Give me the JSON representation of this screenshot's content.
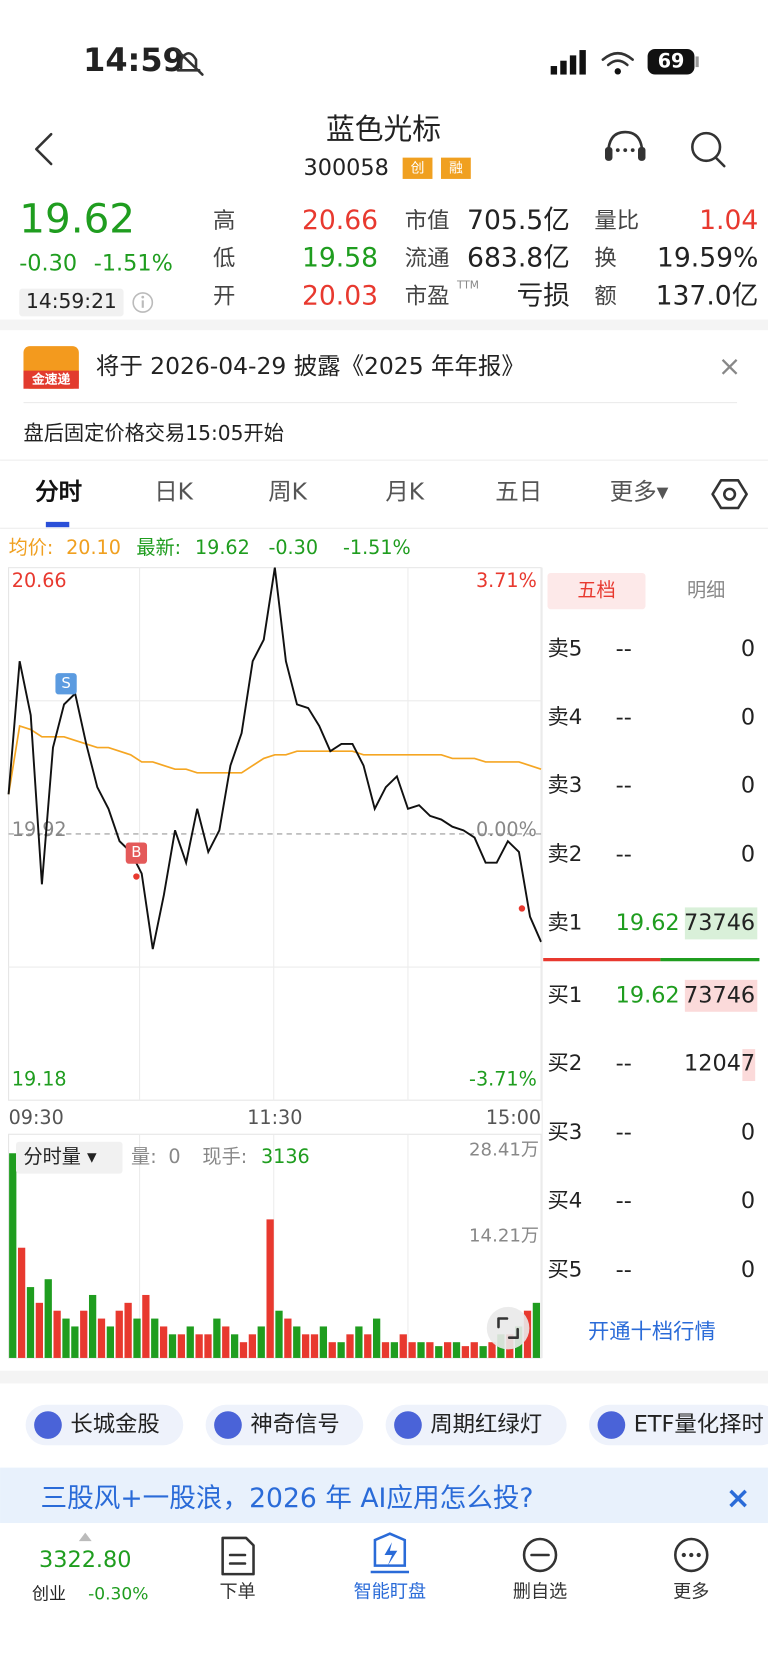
{
  "status_bar": {
    "time": "14:59",
    "battery": "69"
  },
  "header": {
    "title": "蓝色光标",
    "code": "300058",
    "badges": [
      "创",
      "融"
    ]
  },
  "quote": {
    "price": "19.62",
    "change": "-0.30",
    "change_pct": "-1.51%",
    "time": "14:59:21",
    "fields": [
      {
        "label": "高",
        "value": "20.66"
      },
      {
        "label": "低",
        "value": "19.58"
      },
      {
        "label": "开",
        "value": "20.03"
      },
      {
        "label": "市值",
        "value": "705.5亿"
      },
      {
        "label": "流通",
        "value": "683.8亿"
      },
      {
        "label": "市盈",
        "sup": "TTM",
        "value": "亏损"
      },
      {
        "label": "量比",
        "value": "1.04"
      },
      {
        "label": "换",
        "value": "19.59%"
      },
      {
        "label": "额",
        "value": "137.0亿"
      }
    ]
  },
  "notice": {
    "icon": "金速递",
    "text": "将于 2026-04-29 披露《2025 年年报》",
    "close": "×",
    "sub": "盘后固定价格交易15:05开始"
  },
  "tabs": [
    "分时",
    "日K",
    "周K",
    "月K",
    "五日",
    "更多▾"
  ],
  "intraday": {
    "type": "line",
    "legend": {
      "avg_label": "均价:",
      "avg_value": "20.10",
      "last_label": "最新:",
      "last_value": "19.62",
      "change": "-0.30",
      "change_pct": "-1.51%"
    },
    "ylim": [
      19.18,
      20.66
    ],
    "yticks": [
      20.66,
      19.92,
      19.18
    ],
    "pct_labels": [
      "3.71%",
      "0.00%",
      "-3.71%"
    ],
    "xticks": [
      "09:30",
      "11:30",
      "15:00"
    ],
    "price_color": "#111111",
    "average_color": "#f5a623",
    "price": [
      20.03,
      20.4,
      20.25,
      19.78,
      20.16,
      20.28,
      20.31,
      20.17,
      20.05,
      19.99,
      19.9,
      19.87,
      19.81,
      19.6,
      19.75,
      19.93,
      19.84,
      19.99,
      19.87,
      19.93,
      20.11,
      20.2,
      20.4,
      20.46,
      20.66,
      20.4,
      20.28,
      20.27,
      20.22,
      20.15,
      20.17,
      20.17,
      20.11,
      19.99,
      20.05,
      20.08,
      19.99,
      20.0,
      19.97,
      19.96,
      19.94,
      19.93,
      19.91,
      19.84,
      19.84,
      19.9,
      19.87,
      19.69,
      19.62
    ],
    "average": [
      20.03,
      20.22,
      20.21,
      20.19,
      20.19,
      20.19,
      20.18,
      20.17,
      20.16,
      20.16,
      20.15,
      20.14,
      20.12,
      20.12,
      20.11,
      20.1,
      20.1,
      20.09,
      20.09,
      20.09,
      20.09,
      20.09,
      20.11,
      20.13,
      20.14,
      20.14,
      20.15,
      20.15,
      20.15,
      20.15,
      20.15,
      20.15,
      20.14,
      20.14,
      20.14,
      20.14,
      20.14,
      20.14,
      20.14,
      20.14,
      20.13,
      20.13,
      20.13,
      20.12,
      20.12,
      20.12,
      20.12,
      20.11,
      20.1
    ],
    "trade_marks": [
      "S",
      "B"
    ],
    "volume": {
      "header": "分时量 ▾",
      "amount_label": "量:",
      "amount": "0",
      "hand_label": "现手:",
      "hand": "3136",
      "ylim": [
        0,
        28.41
      ],
      "yticks": [
        {
          "value": 28.41,
          "label": "28.41万"
        },
        {
          "value": 14.21,
          "label": "14.21万"
        }
      ],
      "up_color": "#e8392f",
      "down_color": "#1f9d1f",
      "values": [
        26,
        14,
        9,
        7,
        10,
        6,
        5,
        4,
        6,
        8,
        5,
        4,
        6,
        7,
        5,
        8,
        5,
        4,
        3,
        3,
        4,
        3,
        3,
        5,
        4,
        3,
        2,
        3,
        4,
        17.6,
        6,
        5,
        4,
        3,
        3,
        4,
        2,
        2,
        3,
        4,
        3,
        5,
        2,
        2,
        3,
        2,
        2,
        2,
        1.5,
        2,
        2,
        1.5,
        2,
        1.5,
        2,
        3,
        3,
        4,
        6,
        7
      ],
      "up": [
        false,
        true,
        false,
        true,
        false,
        true,
        false,
        false,
        true,
        false,
        true,
        false,
        true,
        true,
        false,
        true,
        false,
        true,
        false,
        true,
        false,
        true,
        true,
        false,
        true,
        false,
        true,
        true,
        false,
        true,
        false,
        true,
        false,
        true,
        true,
        false,
        true,
        false,
        true,
        false,
        true,
        false,
        true,
        false,
        true,
        true,
        false,
        true,
        false,
        true,
        false,
        true,
        true,
        false,
        true,
        false,
        true,
        false,
        true,
        false
      ]
    }
  },
  "order_book": {
    "tabs": [
      "五档",
      "明细"
    ],
    "rows": [
      {
        "label": "卖5",
        "price": "--",
        "volume": "0"
      },
      {
        "label": "卖4",
        "price": "--",
        "volume": "0"
      },
      {
        "label": "卖3",
        "price": "--",
        "volume": "0"
      },
      {
        "label": "卖2",
        "price": "--",
        "volume": "0"
      },
      {
        "label": "卖1",
        "price": "19.62",
        "volume": "73746"
      },
      {
        "label": "买1",
        "price": "19.62",
        "volume": "73746"
      },
      {
        "label": "买2",
        "price": "--",
        "volume": "12047"
      },
      {
        "label": "买3",
        "price": "--",
        "volume": "0"
      },
      {
        "label": "买4",
        "price": "--",
        "volume": "0"
      },
      {
        "label": "买5",
        "price": "--",
        "volume": "0"
      }
    ],
    "upgrade": "开通十档行情"
  },
  "chips": [
    "长城金股",
    "神奇信号",
    "周期红绿灯",
    "ETF量化择时"
  ],
  "banner": {
    "text": "三股风+一股浪，2026 年 AI应用怎么投?",
    "close": "×"
  },
  "bottom_nav": {
    "index_value": "3322.80",
    "index_name": "创业",
    "index_change": "-0.30%",
    "items": [
      "下单",
      "智能盯盘",
      "删自选",
      "更多"
    ]
  }
}
